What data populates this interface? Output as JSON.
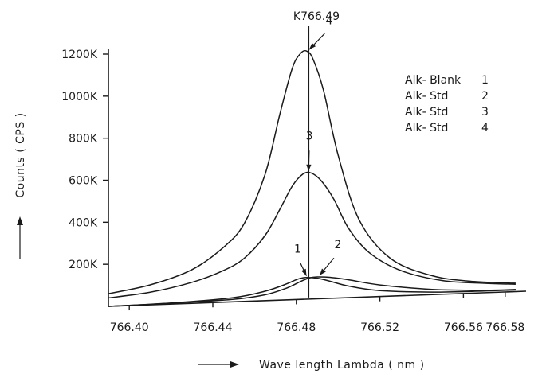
{
  "chart_data": {
    "type": "line",
    "title": "",
    "peak_line_label": "K766.49",
    "peak_line_x": 766.486,
    "xlabel": "Wave length Lambda ( nm )",
    "ylabel": "Counts ( CPS )",
    "xlim": [
      766.39,
      766.59
    ],
    "ylim": [
      0,
      1200
    ],
    "x_ticks": [
      766.4,
      766.44,
      766.48,
      766.52,
      766.56,
      766.58
    ],
    "x_tick_labels": [
      "766.40",
      "766.44",
      "766.48",
      "766.52",
      "766.56",
      "766.58"
    ],
    "y_ticks": [
      200,
      400,
      600,
      800,
      1000,
      1200
    ],
    "y_tick_labels": [
      "200K",
      "400K",
      "600K",
      "800K",
      "1000K",
      "1200K"
    ],
    "grid": false,
    "legend_position": "top-right",
    "legend": [
      {
        "name": "Alk- Blank",
        "id": "1"
      },
      {
        "name": "Alk- Std",
        "id": "2"
      },
      {
        "name": "Alk- Std",
        "id": "3"
      },
      {
        "name": "Alk- Std",
        "id": "4"
      }
    ],
    "series": [
      {
        "label": "1",
        "x": [
          766.39,
          766.42,
          766.45,
          766.465,
          766.475,
          766.48,
          766.483,
          766.486,
          766.49,
          766.495,
          766.505,
          766.52,
          766.545,
          766.57,
          766.585
        ],
        "y": [
          0,
          5,
          20,
          45,
          75,
          95,
          102,
          103,
          98,
          85,
          55,
          28,
          12,
          8,
          8
        ]
      },
      {
        "label": "2",
        "x": [
          766.39,
          766.42,
          766.45,
          766.465,
          766.475,
          766.482,
          766.486,
          766.49,
          766.496,
          766.505,
          766.52,
          766.545,
          766.57,
          766.585
        ],
        "y": [
          0,
          4,
          12,
          28,
          55,
          85,
          100,
          104,
          100,
          85,
          55,
          25,
          12,
          10
        ]
      },
      {
        "label": "3",
        "x": [
          766.39,
          766.41,
          766.43,
          766.445,
          766.455,
          766.465,
          766.472,
          766.478,
          766.483,
          766.487,
          766.492,
          766.498,
          766.505,
          766.515,
          766.53,
          766.55,
          766.57,
          766.585
        ],
        "y": [
          40,
          60,
          100,
          150,
          205,
          310,
          430,
          540,
          595,
          600,
          560,
          470,
          330,
          210,
          120,
          65,
          45,
          35
        ]
      },
      {
        "label": "4",
        "x": [
          766.39,
          766.41,
          766.43,
          766.445,
          766.455,
          766.465,
          766.472,
          766.478,
          766.482,
          766.485,
          766.488,
          766.493,
          766.5,
          766.51,
          766.525,
          766.545,
          766.565,
          766.585
        ],
        "y": [
          60,
          95,
          160,
          260,
          370,
          600,
          880,
          1100,
          1170,
          1180,
          1140,
          990,
          680,
          370,
          180,
          90,
          55,
          40
        ]
      }
    ]
  }
}
